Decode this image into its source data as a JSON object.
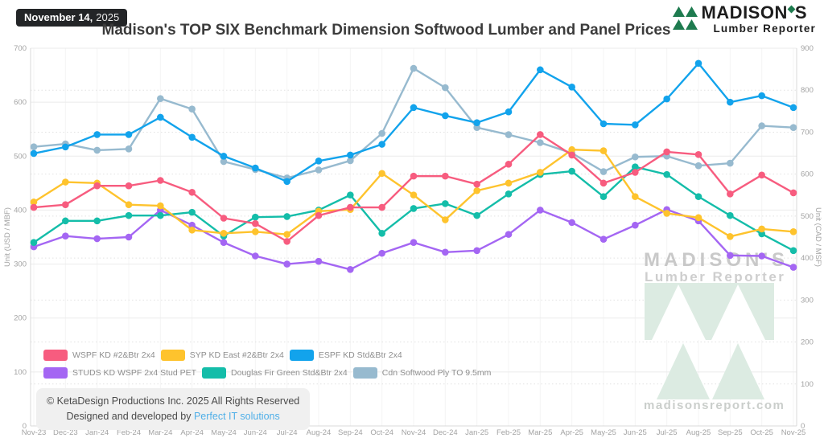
{
  "header": {
    "date_badge": {
      "date_bold": "November 14,",
      "year": "2025"
    },
    "title": "Madison's TOP SIX Benchmark Dimension Softwood Lumber and Panel Prices",
    "logo": {
      "name_pre": "MADISON",
      "name_post": "S",
      "sub": "Lumber Reporter"
    }
  },
  "colors": {
    "brand_green": "#1e7b4f",
    "watermark_pale_green": "#dcebe2",
    "link_blue": "#4fafe8",
    "badge_bg": "#232527",
    "title_text": "#3b3b3b"
  },
  "chart_data": {
    "type": "line",
    "title": "Madison's TOP SIX Benchmark Dimension Softwood Lumber and Panel Prices",
    "grid": true,
    "legend_position": "bottom-left",
    "categories": [
      "Nov-23",
      "Dec-23",
      "Jan-24",
      "Feb-24",
      "Mar-24",
      "Apr-24",
      "May-24",
      "Jun-24",
      "Jul-24",
      "Aug-24",
      "Sep-24",
      "Oct-24",
      "Nov-24",
      "Dec-24",
      "Jan-25",
      "Feb-25",
      "Mar-25",
      "Apr-25",
      "May-25",
      "Jun-25",
      "Jul-25",
      "Aug-25",
      "Sep-25",
      "Oct-25",
      "Nov-25"
    ],
    "left_axis": {
      "label": "Unit (USD / MBF)",
      "min": 0,
      "max": 700,
      "step": 100
    },
    "right_axis": {
      "label": "Unit (CAD / MSF)",
      "min": 0,
      "max": 900,
      "step": 100
    },
    "series": [
      {
        "name": "WSPF KD #2&Btr 2x4",
        "color": "#f75c7f",
        "axis": "left",
        "values": [
          405,
          410,
          445,
          445,
          455,
          433,
          385,
          375,
          342,
          390,
          405,
          405,
          463,
          463,
          448,
          485,
          540,
          502,
          450,
          470,
          508,
          503,
          430,
          465,
          432
        ]
      },
      {
        "name": "SYP KD East #2&Btr 2x4",
        "color": "#fec32d",
        "axis": "left",
        "values": [
          415,
          452,
          450,
          410,
          408,
          363,
          357,
          360,
          355,
          398,
          401,
          468,
          428,
          382,
          436,
          450,
          470,
          512,
          510,
          425,
          394,
          386,
          351,
          365,
          360
        ]
      },
      {
        "name": "ESPF KD Std&Btr 2x4",
        "color": "#12a3ec",
        "axis": "left",
        "values": [
          505,
          517,
          540,
          540,
          572,
          535,
          500,
          478,
          453,
          491,
          502,
          522,
          590,
          575,
          562,
          582,
          660,
          628,
          560,
          558,
          606,
          672,
          600,
          612,
          590
        ]
      },
      {
        "name": "STUDS KD WSPF 2x4 Stud PET",
        "color": "#a466f3",
        "axis": "left",
        "values": [
          332,
          352,
          347,
          350,
          400,
          372,
          340,
          315,
          300,
          305,
          290,
          320,
          340,
          322,
          325,
          355,
          400,
          377,
          346,
          372,
          401,
          380,
          316,
          315,
          294
        ]
      },
      {
        "name": "Douglas Fir Green Std&Btr 2x4",
        "color": "#14bda9",
        "axis": "left",
        "values": [
          340,
          380,
          380,
          390,
          390,
          396,
          352,
          387,
          388,
          400,
          428,
          357,
          403,
          412,
          390,
          430,
          466,
          472,
          425,
          480,
          466,
          425,
          390,
          356,
          325
        ]
      },
      {
        "name": "Cdn Softwood Ply TO 9.5mm",
        "color": "#97bacf",
        "axis": "right",
        "values": [
          665,
          672,
          657,
          660,
          780,
          755,
          630,
          611,
          591,
          610,
          632,
          697,
          852,
          806,
          711,
          694,
          675,
          650,
          606,
          641,
          643,
          620,
          626,
          715,
          711
        ]
      }
    ]
  },
  "watermark": {
    "line1": "MADISON'S",
    "line2": "Lumber Reporter",
    "site": "madisonsreport.com"
  },
  "footer": {
    "copyright": "© KetaDesign Productions Inc. 2025 All Rights Reserved",
    "designed_prefix": "Designed and developed by",
    "link": "Perfect IT solutions"
  }
}
